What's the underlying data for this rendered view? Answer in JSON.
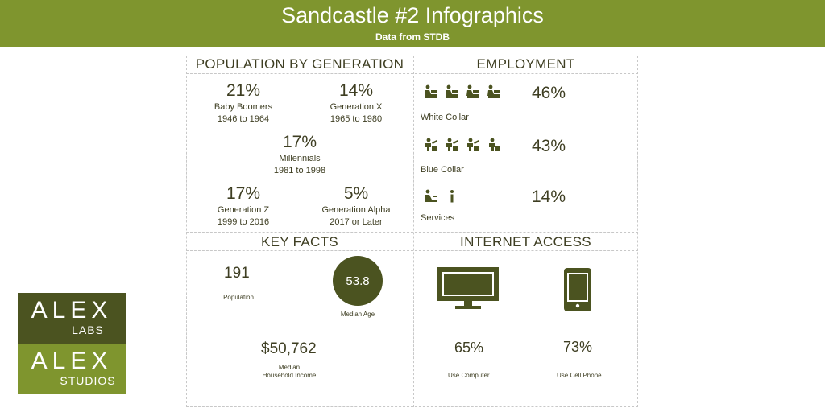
{
  "header": {
    "title": "Sandcastle #2 Infographics",
    "subtitle": "Data from STDB"
  },
  "population": {
    "title": "POPULATION BY GENERATION",
    "items": [
      {
        "pct": "21%",
        "name": "Baby Boomers",
        "range": "1946 to 1964"
      },
      {
        "pct": "14%",
        "name": "Generation X",
        "range": "1965 to 1980"
      },
      {
        "pct": "17%",
        "name": "Millennials",
        "range": "1981 to 1998"
      },
      {
        "pct": "17%",
        "name": "Generation Z",
        "range": "1999 to 2016"
      },
      {
        "pct": "5%",
        "name": "Generation Alpha",
        "range": "2017 or Later"
      }
    ]
  },
  "employment": {
    "title": "EMPLOYMENT",
    "items": [
      {
        "label": "White Collar",
        "pct": "46%",
        "icon": "office-worker-icon"
      },
      {
        "label": "Blue Collar",
        "pct": "43%",
        "icon": "manual-worker-icon"
      },
      {
        "label": "Services",
        "pct": "14%",
        "icon": "service-worker-icon"
      }
    ]
  },
  "key_facts": {
    "title": "KEY FACTS",
    "population": {
      "value": "191",
      "label": "Population"
    },
    "median_age": {
      "value": "53.8",
      "label": "Median Age"
    },
    "income": {
      "value": "$50,762",
      "label_line1": "Median",
      "label_line2": "Household Income"
    }
  },
  "internet": {
    "title": "INTERNET ACCESS",
    "computer": {
      "pct": "65%",
      "label": "Use Computer",
      "icon": "monitor-icon"
    },
    "phone": {
      "pct": "73%",
      "label": "Use Cell Phone",
      "icon": "cell-phone-icon"
    }
  },
  "logo": {
    "top_big": "ALEX",
    "top_small": "LABS",
    "bottom_big": "ALEX",
    "bottom_small": "STUDIOS"
  },
  "colors": {
    "brand_green": "#7f952e",
    "dark_olive": "#4b5320",
    "text": "#3e3e22"
  }
}
